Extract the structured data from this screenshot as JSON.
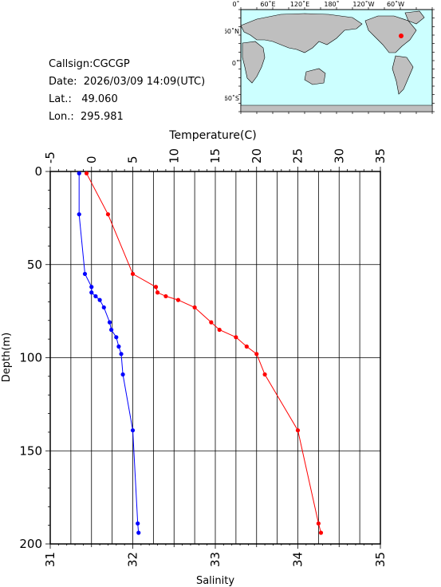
{
  "station": {
    "callsign_label": "Callsign:",
    "callsign": "CGCGP",
    "date_label": "Date:",
    "date": "2026/03/09 14:09(UTC)",
    "lat_label": "Lat.:",
    "lat": "49.060",
    "lon_label": "Lon.:",
    "lon": "295.981"
  },
  "map": {
    "lon_labels": [
      "0˚",
      "60˚E",
      "120˚E",
      "180˚",
      "120˚W",
      "60˚W"
    ],
    "lat_labels": [
      "60˚N",
      "0˚",
      "60˚S"
    ],
    "ocean_color": "#ccffff",
    "land_color": "#bfbfbf",
    "marker_color": "#ff0000"
  },
  "chart_data": {
    "type": "line",
    "title": "",
    "top_axis_label": "Temperature(C)",
    "bottom_axis_label": "Salinity",
    "left_axis_label": "Depth(m)",
    "temperature_range": [
      -5,
      35
    ],
    "temperature_ticks": [
      "-5",
      "0",
      "5",
      "10",
      "15",
      "20",
      "25",
      "30",
      "35"
    ],
    "salinity_range": [
      31,
      35
    ],
    "salinity_ticks": [
      "31",
      "32",
      "33",
      "34",
      "35"
    ],
    "depth_range": [
      0,
      200
    ],
    "depth_ticks": [
      "0",
      "50",
      "100",
      "150",
      "200"
    ],
    "grid": true,
    "series": [
      {
        "color": "#ff0000",
        "axis": "temperature",
        "points": [
          {
            "x": -0.6,
            "depth": 1
          },
          {
            "x": 2.0,
            "depth": 23
          },
          {
            "x": 5.0,
            "depth": 55
          },
          {
            "x": 7.8,
            "depth": 62
          },
          {
            "x": 8.0,
            "depth": 65
          },
          {
            "x": 9.0,
            "depth": 67
          },
          {
            "x": 10.5,
            "depth": 69
          },
          {
            "x": 12.5,
            "depth": 73
          },
          {
            "x": 14.5,
            "depth": 81
          },
          {
            "x": 15.5,
            "depth": 85
          },
          {
            "x": 17.5,
            "depth": 89
          },
          {
            "x": 18.8,
            "depth": 94
          },
          {
            "x": 20.0,
            "depth": 98
          },
          {
            "x": 21.0,
            "depth": 109
          },
          {
            "x": 25.0,
            "depth": 139
          },
          {
            "x": 27.5,
            "depth": 189
          },
          {
            "x": 27.8,
            "depth": 194
          }
        ]
      },
      {
        "color": "#0000ff",
        "axis": "salinity",
        "points": [
          {
            "x": 31.35,
            "depth": 1
          },
          {
            "x": 31.35,
            "depth": 23
          },
          {
            "x": 31.42,
            "depth": 55
          },
          {
            "x": 31.5,
            "depth": 62
          },
          {
            "x": 31.5,
            "depth": 65
          },
          {
            "x": 31.55,
            "depth": 67
          },
          {
            "x": 31.6,
            "depth": 69
          },
          {
            "x": 31.65,
            "depth": 73
          },
          {
            "x": 31.72,
            "depth": 81
          },
          {
            "x": 31.74,
            "depth": 85
          },
          {
            "x": 31.8,
            "depth": 89
          },
          {
            "x": 31.83,
            "depth": 94
          },
          {
            "x": 31.86,
            "depth": 98
          },
          {
            "x": 31.88,
            "depth": 109
          },
          {
            "x": 32.0,
            "depth": 139
          },
          {
            "x": 32.06,
            "depth": 189
          },
          {
            "x": 32.07,
            "depth": 194
          }
        ]
      }
    ]
  }
}
